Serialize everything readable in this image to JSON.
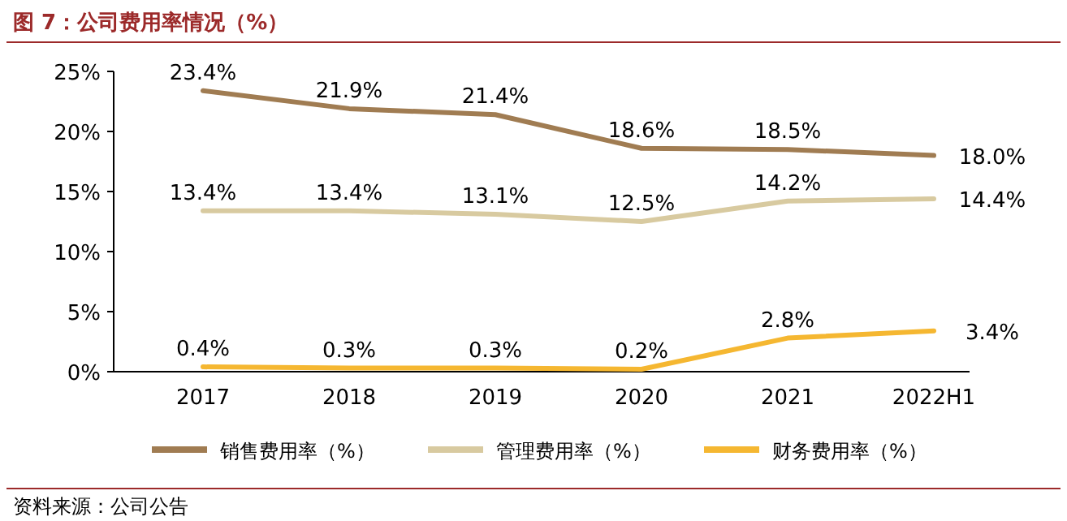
{
  "chart_data": {
    "type": "line",
    "title": "图 7：公司费用率情况（%）",
    "categories": [
      "2017",
      "2018",
      "2019",
      "2020",
      "2021",
      "2022H1"
    ],
    "series": [
      {
        "name": "销售费用率（%）",
        "color": "#a07c52",
        "values": [
          23.4,
          21.9,
          21.4,
          18.6,
          18.5,
          18.0
        ],
        "value_labels": [
          "23.4%",
          "21.9%",
          "21.4%",
          "18.6%",
          "18.5%",
          "18.0%"
        ]
      },
      {
        "name": "管理费用率（%）",
        "color": "#d8caa0",
        "values": [
          13.4,
          13.4,
          13.1,
          12.5,
          14.2,
          14.4
        ],
        "value_labels": [
          "13.4%",
          "13.4%",
          "13.1%",
          "12.5%",
          "14.2%",
          "14.4%"
        ]
      },
      {
        "name": "财务费用率（%）",
        "color": "#f5b731",
        "values": [
          0.4,
          0.3,
          0.3,
          0.2,
          2.8,
          3.4
        ],
        "value_labels": [
          "0.4%",
          "0.3%",
          "0.3%",
          "0.2%",
          "2.8%",
          "3.4%"
        ]
      }
    ],
    "ylim": [
      0,
      25
    ],
    "yticks": [
      {
        "value": 0,
        "label": "0%"
      },
      {
        "value": 5,
        "label": "5%"
      },
      {
        "value": 10,
        "label": "10%"
      },
      {
        "value": 15,
        "label": "15%"
      },
      {
        "value": 20,
        "label": "20%"
      },
      {
        "value": 25,
        "label": "25%"
      }
    ],
    "legend": "bottom",
    "marker": "none",
    "line_style": "solid",
    "annotations": [
      "资料来源：公司公告"
    ]
  }
}
